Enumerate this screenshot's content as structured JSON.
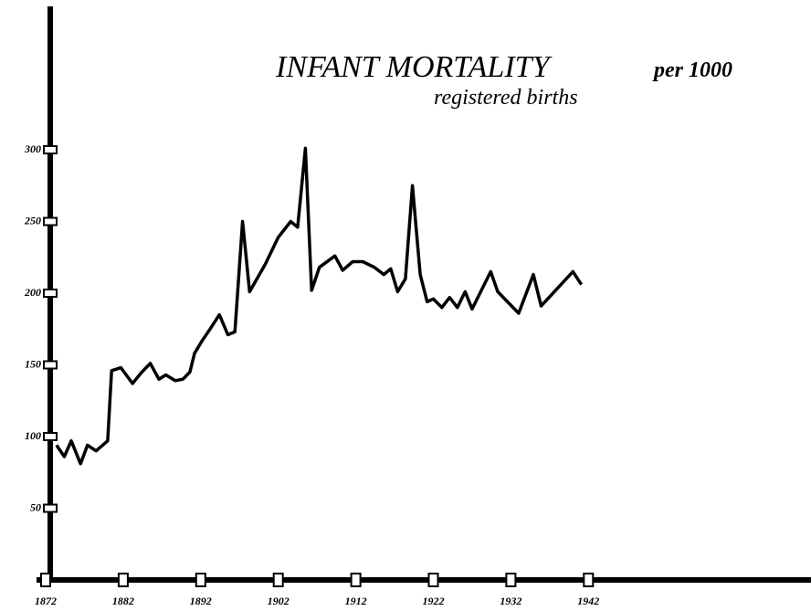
{
  "chart_data": {
    "type": "line",
    "title": "INFANT MORTALITY",
    "title_suffix": "per 1000",
    "subtitle": "registered births",
    "x": [
      1873.4,
      1874.4,
      1875.3,
      1876.5,
      1877.4,
      1878.5,
      1880,
      1880.5,
      1881.7,
      1883.2,
      1884.4,
      1885.5,
      1886.6,
      1887.5,
      1888.7,
      1889.7,
      1890.6,
      1891.2,
      1892.2,
      1893.2,
      1894.4,
      1895.5,
      1896.4,
      1897.4,
      1898.3,
      1900.3,
      1902,
      1903.6,
      1904.5,
      1905.5,
      1906.3,
      1907.3,
      1909.3,
      1910.3,
      1911.6,
      1912.9,
      1914.4,
      1915.6,
      1916.5,
      1917.4,
      1918.4,
      1919.3,
      1920.3,
      1921.2,
      1922,
      1923.1,
      1924.1,
      1925.1,
      1926.1,
      1927,
      1928.2,
      1929.4,
      1930.3,
      1933,
      1934.9,
      1935.9,
      1940,
      1941.1
    ],
    "series": [
      {
        "color": "#000000",
        "values": [
          94,
          86,
          97,
          81,
          94,
          90,
          97,
          146,
          148,
          137,
          145,
          151,
          140,
          143,
          139,
          140,
          145,
          158,
          167,
          175,
          185,
          171,
          173,
          250,
          201,
          220,
          239,
          250,
          246,
          301,
          202,
          218,
          226,
          216,
          222,
          222,
          218,
          213,
          217,
          201,
          210,
          275,
          213,
          194,
          196,
          190,
          197,
          190,
          201,
          189,
          202,
          215,
          201,
          186,
          213,
          191,
          215,
          206
        ]
      }
    ],
    "xlim": [
      1872,
      1970
    ],
    "xticks": [
      1872,
      1882,
      1892,
      1902,
      1912,
      1922,
      1932,
      1942
    ],
    "ylim": [
      0,
      400
    ],
    "yticks": [
      50,
      100,
      150,
      200,
      250,
      300
    ]
  }
}
